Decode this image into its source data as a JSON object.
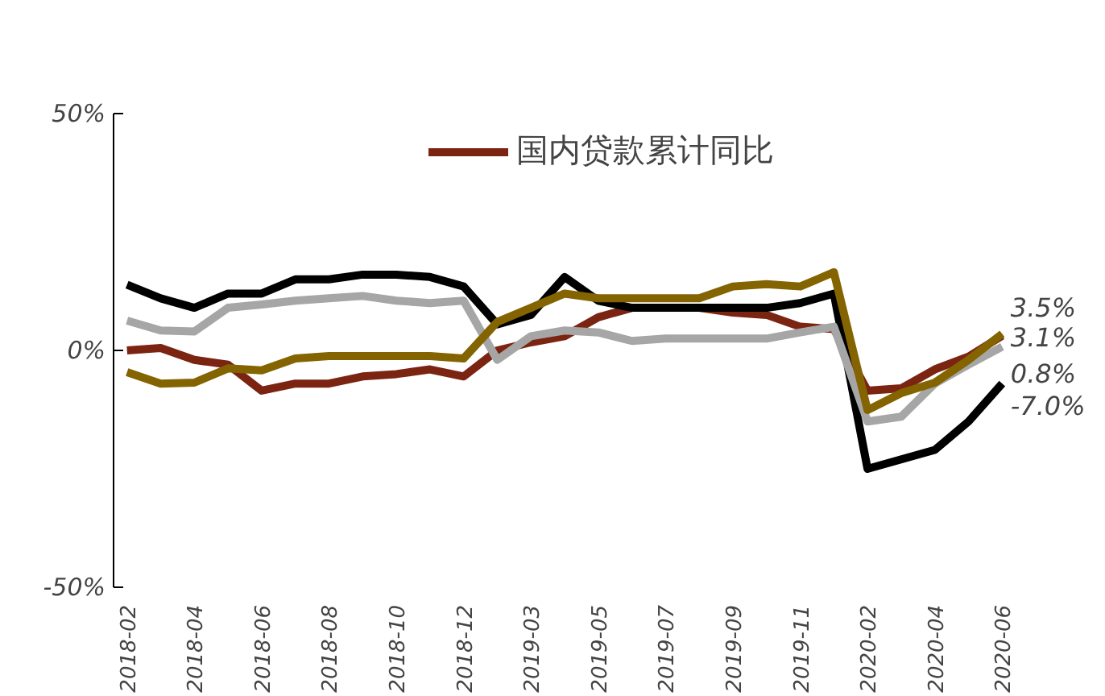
{
  "chart_data": {
    "type": "line",
    "categories": [
      "2018-02",
      null,
      "2018-04",
      null,
      "2018-06",
      null,
      "2018-08",
      null,
      "2018-10",
      null,
      "2018-12",
      null,
      "2019-03",
      null,
      "2019-05",
      null,
      "2019-07",
      null,
      "2019-09",
      null,
      "2019-11",
      null,
      "2020-02",
      null,
      "2020-04",
      null,
      "2020-06"
    ],
    "series": [
      {
        "name": "国内贷款累计同比",
        "color": "#7b2412",
        "values": [
          0,
          0.5,
          -2,
          -3,
          -8.5,
          -7,
          -7,
          -5.5,
          -5,
          -4,
          -5.5,
          0,
          1.7,
          3,
          7,
          9,
          9,
          9,
          8,
          7.5,
          5,
          4.5,
          -8.5,
          -8,
          -4,
          -1.3,
          3.1
        ]
      },
      {
        "color": "#000000",
        "values": [
          13.9,
          11,
          9,
          12,
          12,
          15,
          15,
          16,
          16,
          15.5,
          13.5,
          5.5,
          7.5,
          15.5,
          10.5,
          9,
          9,
          9,
          9,
          9,
          10,
          12,
          -25,
          -23,
          -21,
          -15,
          -7.0
        ]
      },
      {
        "color": "#a6a6a6",
        "values": [
          6.3,
          4.2,
          4,
          9,
          9.7,
          10.5,
          11,
          11.5,
          10.5,
          10,
          10.5,
          -2,
          3,
          4.2,
          3.8,
          2,
          2.5,
          2.5,
          2.5,
          2.5,
          3.8,
          5,
          -15,
          -14,
          -7,
          -3,
          0.8
        ]
      },
      {
        "color": "#836400",
        "values": [
          -4.6,
          -7,
          -6.8,
          -3.8,
          -4.2,
          -1.7,
          -1.2,
          -1.2,
          -1.2,
          -1.2,
          -1.7,
          6,
          9,
          12,
          11,
          11,
          11,
          11,
          13.5,
          14,
          13.5,
          16.5,
          -12.6,
          -9,
          -6.8,
          -2,
          3.5
        ]
      }
    ],
    "ylim": [
      -50,
      50
    ],
    "yticks": [
      {
        "value": 50,
        "label": "50%"
      },
      {
        "value": 0,
        "label": "0%"
      },
      {
        "value": -50,
        "label": "-50%"
      }
    ],
    "annotations": [
      {
        "text": "3.5%",
        "x": "2020-06",
        "y": 3.5
      },
      {
        "text": "3.1%",
        "x": "2020-06",
        "y": 3.1
      },
      {
        "text": "0.8%",
        "x": "2020-06",
        "y": 0.8
      },
      {
        "text": "-7.0%",
        "x": "2020-06",
        "y": -7.0
      }
    ],
    "legend": "top",
    "grid": false,
    "line_style": "solid",
    "marker": "none"
  }
}
